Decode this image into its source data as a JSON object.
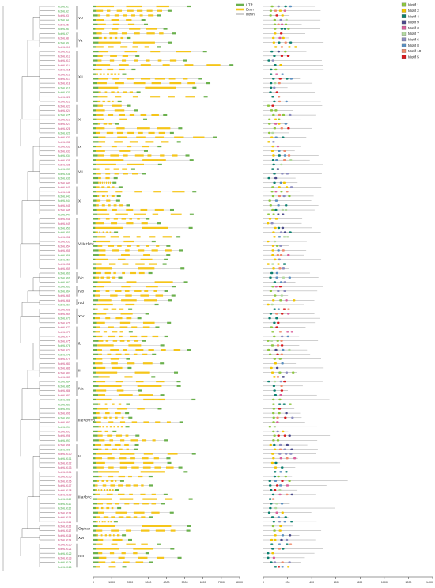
{
  "legend_gene": [
    {
      "label": "UTR",
      "color": "#6ab04c"
    },
    {
      "label": "Exon",
      "color": "#f5c518"
    },
    {
      "label": "Intron",
      "color": "#888888"
    }
  ],
  "legend_motif": [
    {
      "label": "Motif 1",
      "color": "#8dc63f"
    },
    {
      "label": "Motif 2",
      "color": "#f2c500"
    },
    {
      "label": "Motif 4",
      "color": "#0b7f6e"
    },
    {
      "label": "Motif 9",
      "color": "#4a4a8a"
    },
    {
      "label": "Motif 3",
      "color": "#d95f9b"
    },
    {
      "label": "Motif 7",
      "color": "#b3d9a0"
    },
    {
      "label": "Motif 6",
      "color": "#8c8cbf"
    },
    {
      "label": "Motif 8",
      "color": "#5a8fc0"
    },
    {
      "label": "Motif 10",
      "color": "#f08a6b"
    },
    {
      "label": "Motif 5",
      "color": "#d7191c"
    }
  ],
  "clades": [
    {
      "label": "Vb",
      "n": 6
    },
    {
      "label": "Va",
      "n": 4
    },
    {
      "label": "XII",
      "n": 12
    },
    {
      "label": "XI",
      "n": 7
    },
    {
      "label": "IX",
      "n": 5
    },
    {
      "label": "VII",
      "n": 6
    },
    {
      "label": "X",
      "n": 7
    },
    {
      "label": "VIIIa+b+c",
      "n": 12
    },
    {
      "label": "IVc",
      "n": 3
    },
    {
      "label": "IVb",
      "n": 3
    },
    {
      "label": "IVd",
      "n": 2
    },
    {
      "label": "XIV",
      "n": 4
    },
    {
      "label": "Ib",
      "n": 8
    },
    {
      "label": "III",
      "n": 4
    },
    {
      "label": "IVa",
      "n": 4
    },
    {
      "label": "IIIe+d+f+b",
      "n": 10
    },
    {
      "label": "Ia",
      "n": 6
    },
    {
      "label": "IIIa+b+c",
      "n": 12
    },
    {
      "label": "Orphan",
      "n": 2
    },
    {
      "label": "XVI",
      "n": 2
    },
    {
      "label": "XIII",
      "n": 6
    }
  ],
  "gene_axis_ticks": [
    "0",
    "1000",
    "2000",
    "3000",
    "4000",
    "5000",
    "6000",
    "7000",
    "8000"
  ],
  "motif_axis_ticks": [
    "0",
    "200",
    "400",
    "600",
    "800",
    "1000",
    "1200",
    "1400"
  ],
  "gene_prefix": "RcbHLH"
}
